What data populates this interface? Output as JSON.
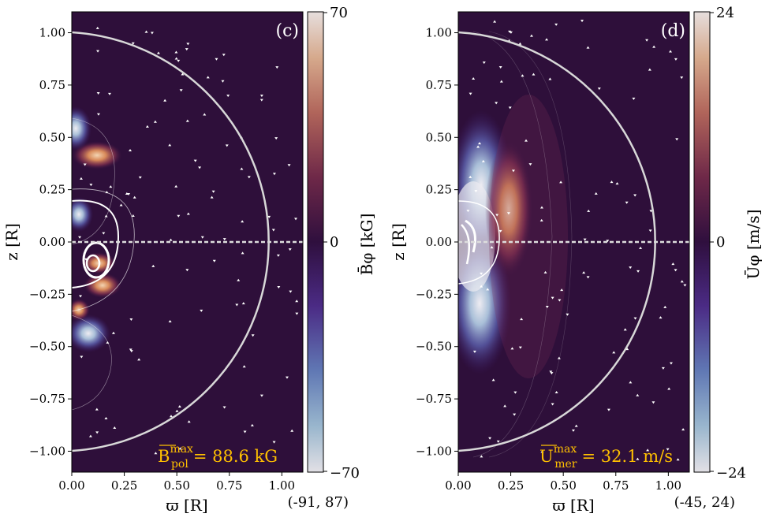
{
  "chart_data": [
    {
      "type": "heatmap",
      "panel_label": "(c)",
      "xlabel": "ϖ [R]",
      "ylabel": "z [R]",
      "xlim": [
        0,
        1.1
      ],
      "ylim": [
        -1.1,
        1.1
      ],
      "x_ticks": [
        "0.00",
        "0.25",
        "0.50",
        "0.75",
        "1.00"
      ],
      "y_ticks": [
        "−1.00",
        "−0.75",
        "−0.50",
        "−0.25",
        "0.00",
        "0.25",
        "0.50",
        "0.75",
        "1.00"
      ],
      "colorbar": {
        "label": "B̄φ [kG]",
        "max": "70",
        "mid": "0",
        "min": "−70"
      },
      "annotation": {
        "symbol": "B",
        "sup": "max",
        "sub": "pol",
        "value": "= 88.6 kG"
      },
      "range_text": "(-91, 87)",
      "features": [
        {
          "sign": "positive",
          "center": [
            0.11,
            0.42
          ],
          "strength": 0.75
        },
        {
          "sign": "negative",
          "center": [
            0.02,
            0.55
          ],
          "strength": 0.8
        },
        {
          "sign": "negative",
          "center": [
            0.04,
            0.12
          ],
          "strength": 0.7
        },
        {
          "sign": "positive",
          "center": [
            0.12,
            -0.1
          ],
          "strength": 0.6
        },
        {
          "sign": "positive",
          "center": [
            0.14,
            -0.22
          ],
          "strength": 0.55
        },
        {
          "sign": "negative",
          "center": [
            0.08,
            -0.45
          ],
          "strength": 0.8
        },
        {
          "sign": "positive",
          "center": [
            0.02,
            -0.32
          ],
          "strength": 0.5
        }
      ]
    },
    {
      "type": "heatmap",
      "panel_label": "(d)",
      "xlabel": "ϖ [R]",
      "ylabel": "z [R]",
      "xlim": [
        0,
        1.1
      ],
      "ylim": [
        -1.1,
        1.1
      ],
      "x_ticks": [
        "0.00",
        "0.25",
        "0.50",
        "0.75",
        "1.00"
      ],
      "y_ticks": [
        "−1.00",
        "−0.75",
        "−0.50",
        "−0.25",
        "0.00",
        "0.25",
        "0.50",
        "0.75",
        "1.00"
      ],
      "colorbar": {
        "label": "Ūφ [m/s]",
        "max": "24",
        "mid": "0",
        "min": "−24"
      },
      "annotation": {
        "symbol": "U",
        "sup": "max",
        "sub": "mer",
        "value": "= 32.1 m/s"
      },
      "range_text": "(-45, 24)",
      "features": [
        {
          "sign": "negative",
          "center": [
            0.06,
            0.25
          ],
          "strength": 1.0
        },
        {
          "sign": "negative",
          "center": [
            0.06,
            -0.3
          ],
          "strength": 1.0
        },
        {
          "sign": "positive",
          "center": [
            0.22,
            0.15
          ],
          "strength": 0.85
        }
      ]
    }
  ]
}
